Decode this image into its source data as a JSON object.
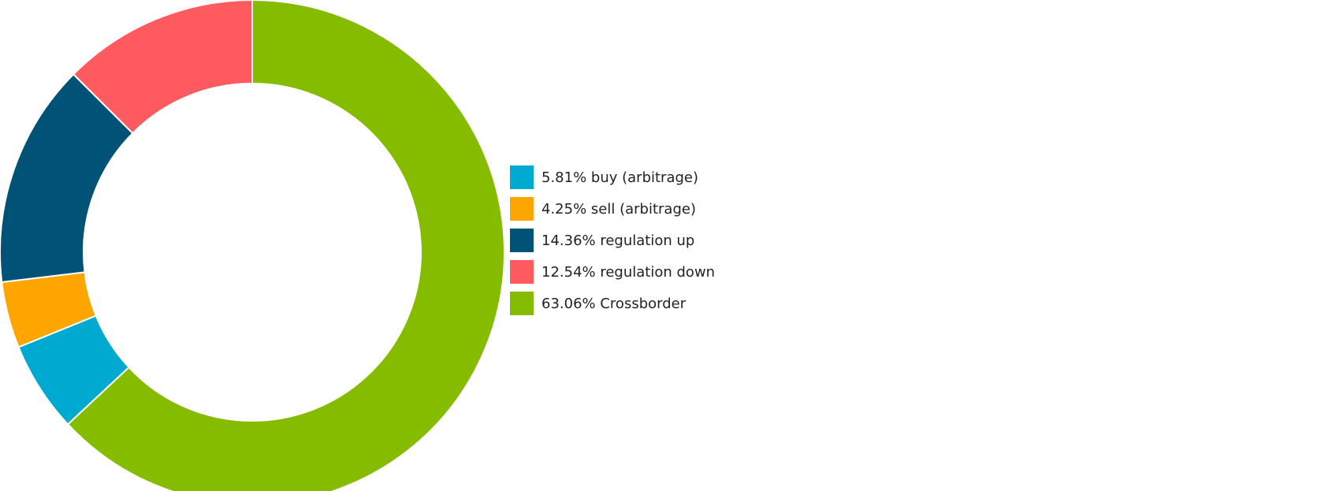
{
  "chart_data": {
    "type": "pie",
    "donut": true,
    "legend_position": "right",
    "series": [
      {
        "name": "buy (arbitrage)",
        "percent_label": "5.81%",
        "value": 5.81,
        "color": "#00a9d0",
        "label": "5.81% buy (arbitrage)"
      },
      {
        "name": "sell (arbitrage)",
        "percent_label": "4.25%",
        "value": 4.25,
        "color": "#ffa500",
        "label": "4.25% sell (arbitrage)"
      },
      {
        "name": "regulation up",
        "percent_label": "14.36%",
        "value": 14.36,
        "color": "#005277",
        "label": "14.36% regulation up"
      },
      {
        "name": "regulation down",
        "percent_label": "12.54%",
        "value": 12.54,
        "color": "#ff5a5f",
        "label": "12.54% regulation down"
      },
      {
        "name": "Crossborder",
        "percent_label": "63.06%",
        "value": 63.06,
        "color": "#86bc00",
        "label": "63.06% Crossborder"
      }
    ]
  }
}
